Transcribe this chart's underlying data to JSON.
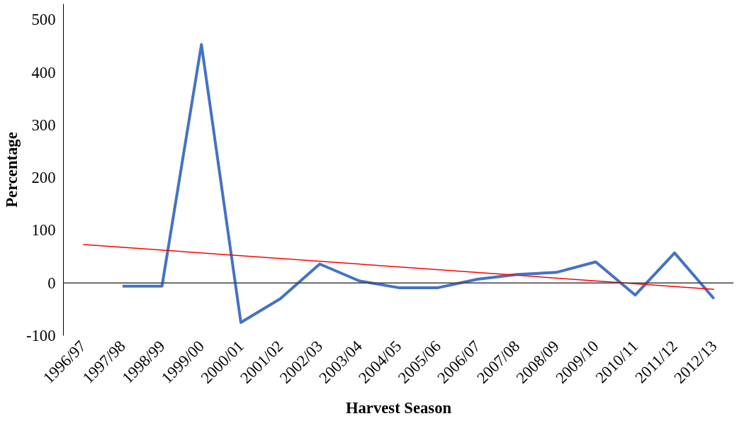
{
  "chart_data": {
    "type": "line",
    "xlabel": "Harvest Season",
    "ylabel": "Percentage",
    "categories": [
      "1996/97",
      "1997/98",
      "1998/99",
      "1999/00",
      "2000/01",
      "2001/02",
      "2002/03",
      "2003/04",
      "2004/05",
      "2005/06",
      "2006/07",
      "2007/08",
      "2008/09",
      "2009/10",
      "2010/11",
      "2011/12",
      "2012/13"
    ],
    "series": [
      {
        "color": "#4472c4",
        "values": [
          null,
          -6,
          -6,
          453,
          -75,
          -30,
          36,
          4,
          -9,
          -9,
          7,
          16,
          20,
          40,
          -23,
          57,
          -30
        ]
      },
      {
        "type": "line",
        "color": "#ff0000",
        "x": [
          "1996/97",
          "2012/13"
        ],
        "values": [
          73,
          -12
        ]
      }
    ],
    "ylim": [
      -100,
      530
    ],
    "yticks": [
      -100,
      0,
      100,
      200,
      300,
      400,
      500
    ],
    "ref_lines": [
      {
        "axis": "y",
        "value": 0,
        "color": "#404040",
        "line_style": "solid"
      }
    ],
    "grid": false
  }
}
